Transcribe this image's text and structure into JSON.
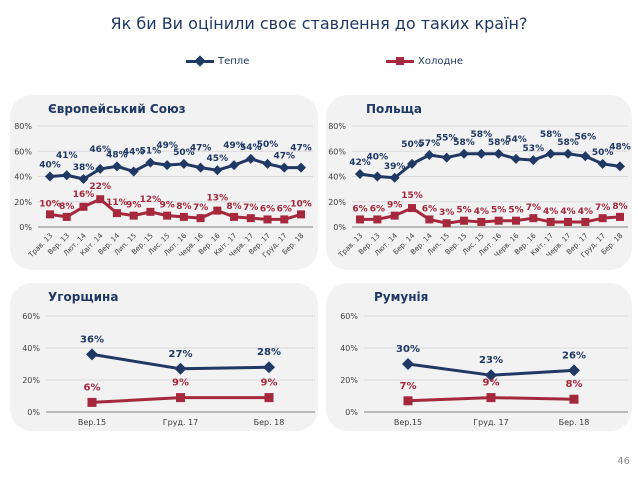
{
  "title": "Як би Ви оцінили своє ставлення до таких країн?",
  "legend": {
    "warm": "Тепле",
    "cold": "Холодне"
  },
  "colors": {
    "warm": "#1f3864",
    "cold": "#a5283d",
    "axis": "#808080",
    "grid": "#d9d9d9"
  },
  "page_number": "46",
  "chart_data": [
    {
      "type": "line",
      "title": "Європейський Союз",
      "ylim": [
        0,
        80
      ],
      "yticks": [
        "0%",
        "20%",
        "40%",
        "60%",
        "80%"
      ],
      "categories": [
        "Трав. 13",
        "Вер. 13",
        "Лют. 14",
        "Квіт. 14",
        "Вер. 14",
        "Лип. 15",
        "Вер. 15",
        "Лис. 15",
        "Лют. 16",
        "Черв. 16",
        "Вер. 16",
        "Квіт. 17",
        "Черв. 17",
        "Вер. 17",
        "Груд. 17",
        "Бер. 18"
      ],
      "series": [
        {
          "name": "Тепле",
          "values": [
            40,
            41,
            38,
            46,
            48,
            44,
            51,
            49,
            50,
            47,
            45,
            49,
            54,
            50,
            47,
            47
          ],
          "labels": [
            "40%",
            "41%",
            "38%",
            "46%",
            "48%",
            "44%",
            "51%",
            "49%",
            "50%",
            "47%",
            "45%",
            "49%",
            "54%",
            "50%",
            "47%",
            "47%"
          ]
        },
        {
          "name": "Холодне",
          "values": [
            10,
            8,
            16,
            22,
            11,
            9,
            12,
            9,
            8,
            7,
            13,
            8,
            7,
            6,
            6,
            10
          ],
          "labels": [
            "10%",
            "8%",
            "16%",
            "22%",
            "11%",
            "9%",
            "12%",
            "9%",
            "8%",
            "7%",
            "13%",
            "8%",
            "7%",
            "6%",
            "6%",
            "10%"
          ]
        }
      ]
    },
    {
      "type": "line",
      "title": "Польща",
      "ylim": [
        0,
        80
      ],
      "yticks": [
        "0%",
        "20%",
        "40%",
        "60%",
        "80%"
      ],
      "categories": [
        "Трав. 13",
        "Вер. 13",
        "Лют. 14",
        "Бер. 14",
        "Вер. 14",
        "Лип. 15",
        "Вер. 15",
        "Лис. 15",
        "Лют. 16",
        "Черв. 16",
        "Вер. 16",
        "Квіт. 17",
        "Черв. 17",
        "Вер. 17",
        "Груд. 17",
        "Бер. 18"
      ],
      "series": [
        {
          "name": "Тепле",
          "values": [
            42,
            40,
            39,
            50,
            57,
            55,
            58,
            58,
            58,
            54,
            53,
            58,
            58,
            56,
            50,
            48
          ],
          "labels": [
            "42%",
            "40%",
            "39%",
            "50%",
            "57%",
            "55%",
            "58%",
            "58%",
            "58%",
            "54%",
            "53%",
            "58%",
            "58%",
            "56%",
            "50%",
            "48%"
          ]
        },
        {
          "name": "Холодне",
          "values": [
            6,
            6,
            9,
            15,
            6,
            3,
            5,
            4,
            5,
            5,
            7,
            4,
            4,
            4,
            7,
            8
          ],
          "labels": [
            "6%",
            "6%",
            "9%",
            "15%",
            "6%",
            "3%",
            "5%",
            "4%",
            "5%",
            "5%",
            "7%",
            "4%",
            "4%",
            "4%",
            "7%",
            "8%"
          ]
        }
      ]
    },
    {
      "type": "line",
      "title": "Угорщина",
      "ylim": [
        0,
        60
      ],
      "yticks": [
        "0%",
        "20%",
        "40%",
        "60%"
      ],
      "categories": [
        "Вер.15",
        "Груд. 17",
        "Бер. 18"
      ],
      "series": [
        {
          "name": "Тепле",
          "values": [
            36,
            27,
            28
          ],
          "labels": [
            "36%",
            "27%",
            "28%"
          ]
        },
        {
          "name": "Холодне",
          "values": [
            6,
            9,
            9
          ],
          "labels": [
            "6%",
            "9%",
            "9%"
          ]
        }
      ]
    },
    {
      "type": "line",
      "title": "Румунія",
      "ylim": [
        0,
        60
      ],
      "yticks": [
        "0%",
        "20%",
        "40%",
        "60%"
      ],
      "categories": [
        "Вер.15",
        "Груд. 17",
        "Бер. 18"
      ],
      "series": [
        {
          "name": "Тепле",
          "values": [
            30,
            23,
            26
          ],
          "labels": [
            "30%",
            "23%",
            "26%"
          ]
        },
        {
          "name": "Холодне",
          "values": [
            7,
            9,
            8
          ],
          "labels": [
            "7%",
            "9%",
            "8%"
          ]
        }
      ]
    }
  ]
}
